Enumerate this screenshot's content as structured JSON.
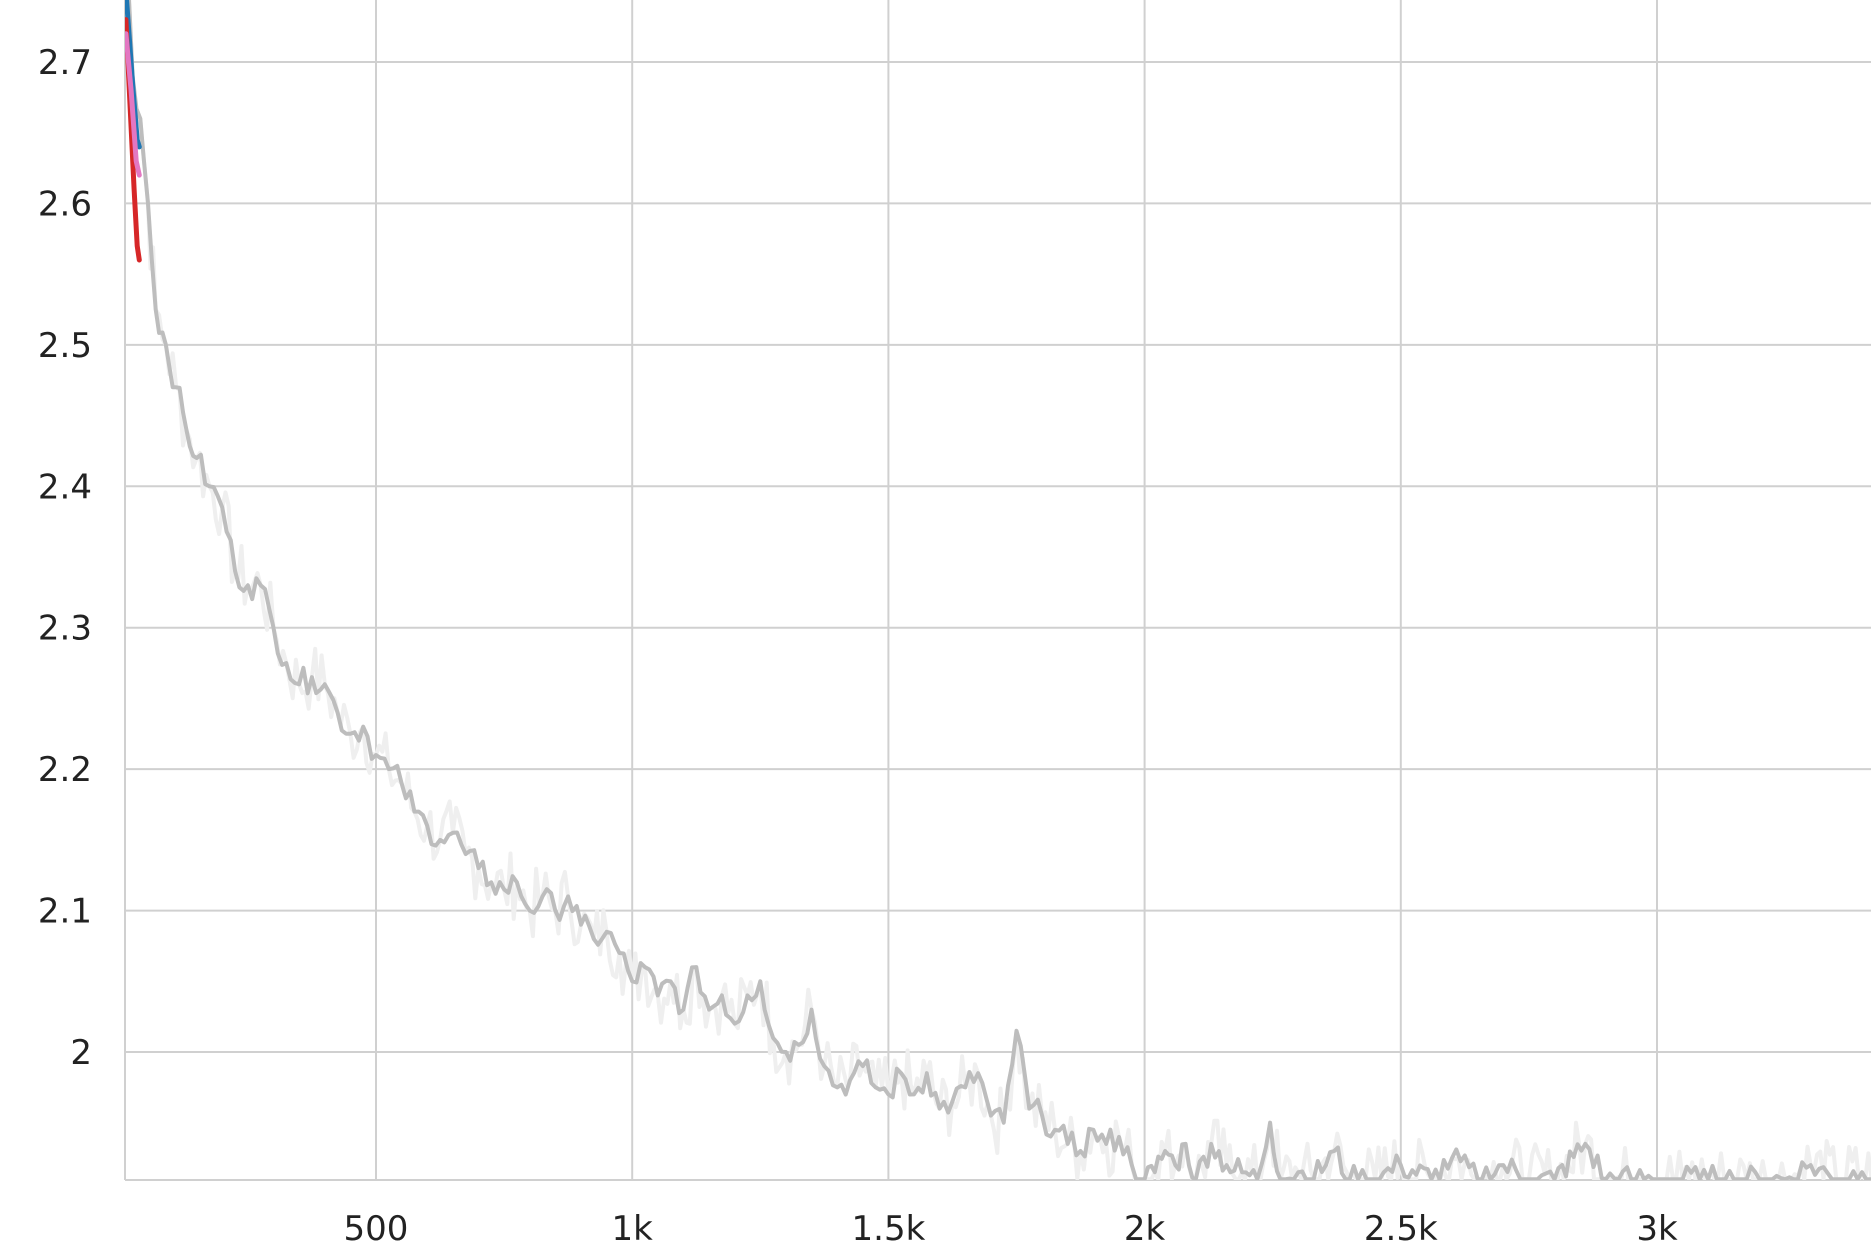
{
  "chart_data": {
    "type": "line",
    "title": "",
    "xlabel": "",
    "ylabel": "",
    "xlim": [
      10,
      3450
    ],
    "ylim": [
      1.91,
      2.75
    ],
    "x_ticks": [
      {
        "value": 500,
        "label": "500"
      },
      {
        "value": 1000,
        "label": "1k"
      },
      {
        "value": 1500,
        "label": "1.5k"
      },
      {
        "value": 2000,
        "label": "2k"
      },
      {
        "value": 2500,
        "label": "2.5k"
      },
      {
        "value": 3000,
        "label": "3k"
      }
    ],
    "y_ticks": [
      {
        "value": 2.0,
        "label": "2"
      },
      {
        "value": 2.1,
        "label": "2.1"
      },
      {
        "value": 2.2,
        "label": "2.2"
      },
      {
        "value": 2.3,
        "label": "2.3"
      },
      {
        "value": 2.4,
        "label": "2.4"
      },
      {
        "value": 2.5,
        "label": "2.5"
      },
      {
        "value": 2.6,
        "label": "2.6"
      },
      {
        "value": 2.7,
        "label": "2.7"
      }
    ],
    "grid": true,
    "legend": "none",
    "series": [
      {
        "color": "#bdbdbd",
        "raw_color": "#efefef",
        "smoothed": [
          [
            10,
            2.8
          ],
          [
            25,
            2.69
          ],
          [
            40,
            2.66
          ],
          [
            55,
            2.6
          ],
          [
            70,
            2.525
          ],
          [
            90,
            2.5
          ],
          [
            110,
            2.47
          ],
          [
            130,
            2.44
          ],
          [
            150,
            2.42
          ],
          [
            175,
            2.4
          ],
          [
            200,
            2.385
          ],
          [
            225,
            2.34
          ],
          [
            250,
            2.33
          ],
          [
            275,
            2.33
          ],
          [
            300,
            2.3
          ],
          [
            325,
            2.275
          ],
          [
            350,
            2.26
          ],
          [
            375,
            2.265
          ],
          [
            400,
            2.26
          ],
          [
            425,
            2.24
          ],
          [
            450,
            2.225
          ],
          [
            475,
            2.23
          ],
          [
            500,
            2.21
          ],
          [
            525,
            2.2
          ],
          [
            550,
            2.19
          ],
          [
            575,
            2.17
          ],
          [
            600,
            2.16
          ],
          [
            625,
            2.15
          ],
          [
            650,
            2.155
          ],
          [
            675,
            2.14
          ],
          [
            700,
            2.13
          ],
          [
            725,
            2.12
          ],
          [
            750,
            2.115
          ],
          [
            775,
            2.12
          ],
          [
            800,
            2.1
          ],
          [
            825,
            2.11
          ],
          [
            850,
            2.1
          ],
          [
            875,
            2.11
          ],
          [
            900,
            2.09
          ],
          [
            925,
            2.08
          ],
          [
            950,
            2.085
          ],
          [
            975,
            2.07
          ],
          [
            1000,
            2.05
          ],
          [
            1025,
            2.06
          ],
          [
            1050,
            2.04
          ],
          [
            1075,
            2.05
          ],
          [
            1100,
            2.03
          ],
          [
            1125,
            2.06
          ],
          [
            1150,
            2.03
          ],
          [
            1175,
            2.04
          ],
          [
            1200,
            2.02
          ],
          [
            1225,
            2.04
          ],
          [
            1250,
            2.05
          ],
          [
            1275,
            2.01
          ],
          [
            1300,
            2.0
          ],
          [
            1325,
            2.005
          ],
          [
            1350,
            2.03
          ],
          [
            1375,
            1.99
          ],
          [
            1400,
            1.975
          ],
          [
            1425,
            1.98
          ],
          [
            1450,
            1.99
          ],
          [
            1475,
            1.975
          ],
          [
            1500,
            1.97
          ],
          [
            1525,
            1.985
          ],
          [
            1550,
            1.97
          ],
          [
            1575,
            1.985
          ],
          [
            1600,
            1.96
          ],
          [
            1625,
            1.965
          ],
          [
            1650,
            1.975
          ],
          [
            1675,
            1.985
          ],
          [
            1700,
            1.955
          ],
          [
            1725,
            1.95
          ],
          [
            1750,
            2.015
          ],
          [
            1775,
            1.96
          ],
          [
            1800,
            1.955
          ],
          [
            1825,
            1.945
          ],
          [
            1850,
            1.935
          ],
          [
            1875,
            1.93
          ],
          [
            1900,
            1.945
          ],
          [
            1925,
            1.935
          ],
          [
            1950,
            1.94
          ],
          [
            1975,
            1.92
          ],
          [
            2000,
            1.91
          ]
        ],
        "tail": [
          [
            2020,
            1.915
          ],
          [
            2040,
            1.93
          ],
          [
            2060,
            1.92
          ],
          [
            2080,
            1.935
          ],
          [
            2100,
            1.91
          ],
          [
            2130,
            1.935
          ],
          [
            2160,
            1.92
          ],
          [
            2190,
            1.915
          ],
          [
            2220,
            1.91
          ],
          [
            2245,
            1.95
          ],
          [
            2265,
            1.91
          ],
          [
            2300,
            1.915
          ],
          [
            2330,
            1.91
          ],
          [
            2370,
            1.93
          ],
          [
            2400,
            1.91
          ],
          [
            2450,
            1.91
          ],
          [
            2500,
            1.92
          ],
          [
            2560,
            1.91
          ],
          [
            2600,
            1.925
          ],
          [
            2650,
            1.91
          ],
          [
            2700,
            1.92
          ],
          [
            2750,
            1.91
          ],
          [
            2800,
            1.91
          ],
          [
            2860,
            1.935
          ],
          [
            2900,
            1.91
          ],
          [
            2950,
            1.91
          ],
          [
            3000,
            1.91
          ],
          [
            3050,
            1.91
          ],
          [
            3100,
            1.91
          ],
          [
            3150,
            1.91
          ],
          [
            3200,
            1.91
          ],
          [
            3250,
            1.91
          ],
          [
            3300,
            1.92
          ],
          [
            3350,
            1.91
          ],
          [
            3400,
            1.915
          ],
          [
            3450,
            1.91
          ]
        ]
      },
      {
        "color": "#1f77b4",
        "smoothed": [
          [
            10,
            2.76
          ],
          [
            18,
            2.72
          ],
          [
            26,
            2.68
          ],
          [
            34,
            2.645
          ],
          [
            38,
            2.64
          ]
        ]
      },
      {
        "color": "#d62728",
        "smoothed": [
          [
            12,
            2.73
          ],
          [
            20,
            2.67
          ],
          [
            28,
            2.61
          ],
          [
            34,
            2.57
          ],
          [
            38,
            2.56
          ]
        ]
      },
      {
        "color": "#e377c2",
        "smoothed": [
          [
            12,
            2.72
          ],
          [
            22,
            2.68
          ],
          [
            32,
            2.63
          ],
          [
            38,
            2.62
          ]
        ]
      }
    ]
  }
}
